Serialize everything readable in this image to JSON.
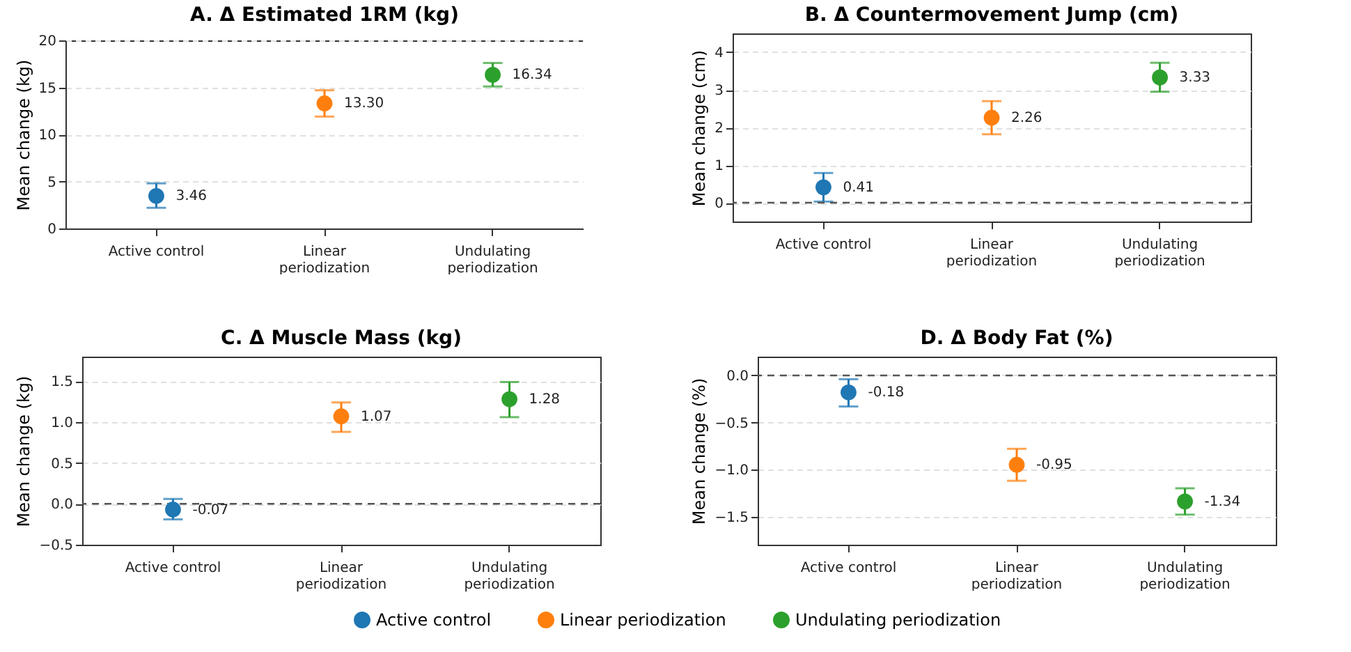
{
  "chart_data": [
    {
      "type": "scatter",
      "title": "A. Δ Estimated 1RM (kg)",
      "ylabel": "Mean change (kg)",
      "categories": [
        "Active control",
        "Linear periodization",
        "Undulating periodization"
      ],
      "ylim": [
        0,
        20
      ],
      "yticks": [
        0,
        5,
        10,
        15,
        20
      ],
      "grid": "y",
      "marker": "circle",
      "series": [
        {
          "color": "#1f77b4",
          "values": [
            3.46,
            null,
            null
          ],
          "errors": [
            [
              2.2,
              4.8
            ],
            null,
            null
          ],
          "value_labels": [
            "3.46",
            null,
            null
          ]
        },
        {
          "color": "#ff7f0e",
          "values": [
            null,
            13.3,
            null
          ],
          "errors": [
            null,
            [
              11.9,
              14.7
            ],
            null
          ],
          "value_labels": [
            null,
            "13.30",
            null
          ]
        },
        {
          "color": "#2ca02c",
          "values": [
            null,
            null,
            16.34
          ],
          "errors": [
            null,
            null,
            [
              15.1,
              17.6
            ]
          ],
          "value_labels": [
            null,
            null,
            "16.34"
          ]
        }
      ]
    },
    {
      "type": "scatter",
      "title": "B. Δ Countermovement Jump (cm)",
      "ylabel": "Mean change (cm)",
      "categories": [
        "Active control",
        "Linear periodization",
        "Undulating periodization"
      ],
      "ylim": [
        -0.5,
        4.5
      ],
      "yticks": [
        0,
        1,
        2,
        3,
        4
      ],
      "grid": "y",
      "marker": "circle",
      "ref_lines": [
        {
          "axis": "y",
          "value": 0,
          "color": "#555555",
          "line_style": "dashed"
        }
      ],
      "series": [
        {
          "color": "#1f77b4",
          "values": [
            0.41,
            null,
            null
          ],
          "errors": [
            [
              0.03,
              0.79
            ],
            null,
            null
          ],
          "value_labels": [
            "0.41",
            null,
            null
          ]
        },
        {
          "color": "#ff7f0e",
          "values": [
            null,
            2.26,
            null
          ],
          "errors": [
            null,
            [
              1.82,
              2.7
            ],
            null
          ],
          "value_labels": [
            null,
            "2.26",
            null
          ]
        },
        {
          "color": "#2ca02c",
          "values": [
            null,
            null,
            3.33
          ],
          "errors": [
            null,
            null,
            [
              2.95,
              3.72
            ]
          ],
          "value_labels": [
            null,
            null,
            "3.33"
          ]
        }
      ]
    },
    {
      "type": "scatter",
      "title": "C. Δ Muscle Mass (kg)",
      "ylabel": "Mean change (kg)",
      "categories": [
        "Active control",
        "Linear periodization",
        "Undulating periodization"
      ],
      "ylim": [
        -0.5,
        1.8
      ],
      "yticks": [
        {
          "value": -0.5,
          "label": "−0.5"
        },
        {
          "value": 0,
          "label": "0.0"
        },
        {
          "value": 0.5,
          "label": "0.5"
        },
        {
          "value": 1,
          "label": "1.0"
        },
        {
          "value": 1.5,
          "label": "1.5"
        }
      ],
      "grid": "y",
      "legend": "bottom",
      "marker": "circle",
      "ref_lines": [
        {
          "axis": "y",
          "value": 0,
          "color": "#555555",
          "line_style": "dashed"
        }
      ],
      "series": [
        {
          "name": "Active control",
          "color": "#1f77b4",
          "values": [
            -0.07,
            null,
            null
          ],
          "errors": [
            [
              -0.19,
              0.06
            ],
            null,
            null
          ],
          "value_labels": [
            "-0.07",
            null,
            null
          ]
        },
        {
          "name": "Linear periodization",
          "color": "#ff7f0e",
          "values": [
            null,
            1.07,
            null
          ],
          "errors": [
            null,
            [
              0.88,
              1.24
            ],
            null
          ],
          "value_labels": [
            null,
            "1.07",
            null
          ]
        },
        {
          "name": "Undulating periodization",
          "color": "#2ca02c",
          "values": [
            null,
            null,
            1.28
          ],
          "errors": [
            null,
            null,
            [
              1.06,
              1.49
            ]
          ],
          "value_labels": [
            null,
            null,
            "1.28"
          ]
        }
      ]
    },
    {
      "type": "scatter",
      "title": "D. Δ Body Fat (%)",
      "ylabel": "Mean change (%)",
      "categories": [
        "Active control",
        "Linear periodization",
        "Undulating periodization"
      ],
      "ylim": [
        -1.8,
        0.2
      ],
      "yticks": [
        {
          "value": -1.5,
          "label": "−1.5"
        },
        {
          "value": -1,
          "label": "−1.0"
        },
        {
          "value": -0.5,
          "label": "−0.5"
        },
        {
          "value": 0,
          "label": "0.0"
        }
      ],
      "grid": "y",
      "marker": "circle",
      "ref_lines": [
        {
          "axis": "y",
          "value": 0,
          "color": "#555555",
          "line_style": "dashed"
        }
      ],
      "series": [
        {
          "color": "#1f77b4",
          "values": [
            -0.18,
            null,
            null
          ],
          "errors": [
            [
              -0.33,
              -0.04
            ],
            null,
            null
          ],
          "value_labels": [
            "-0.18",
            null,
            null
          ]
        },
        {
          "color": "#ff7f0e",
          "values": [
            null,
            -0.95,
            null
          ],
          "errors": [
            null,
            [
              -1.12,
              -0.78
            ],
            null
          ],
          "value_labels": [
            null,
            "-0.95",
            null
          ]
        },
        {
          "color": "#2ca02c",
          "values": [
            null,
            null,
            -1.34
          ],
          "errors": [
            null,
            null,
            [
              -1.48,
              -1.2
            ]
          ],
          "value_labels": [
            null,
            null,
            "-1.34"
          ]
        }
      ]
    }
  ]
}
